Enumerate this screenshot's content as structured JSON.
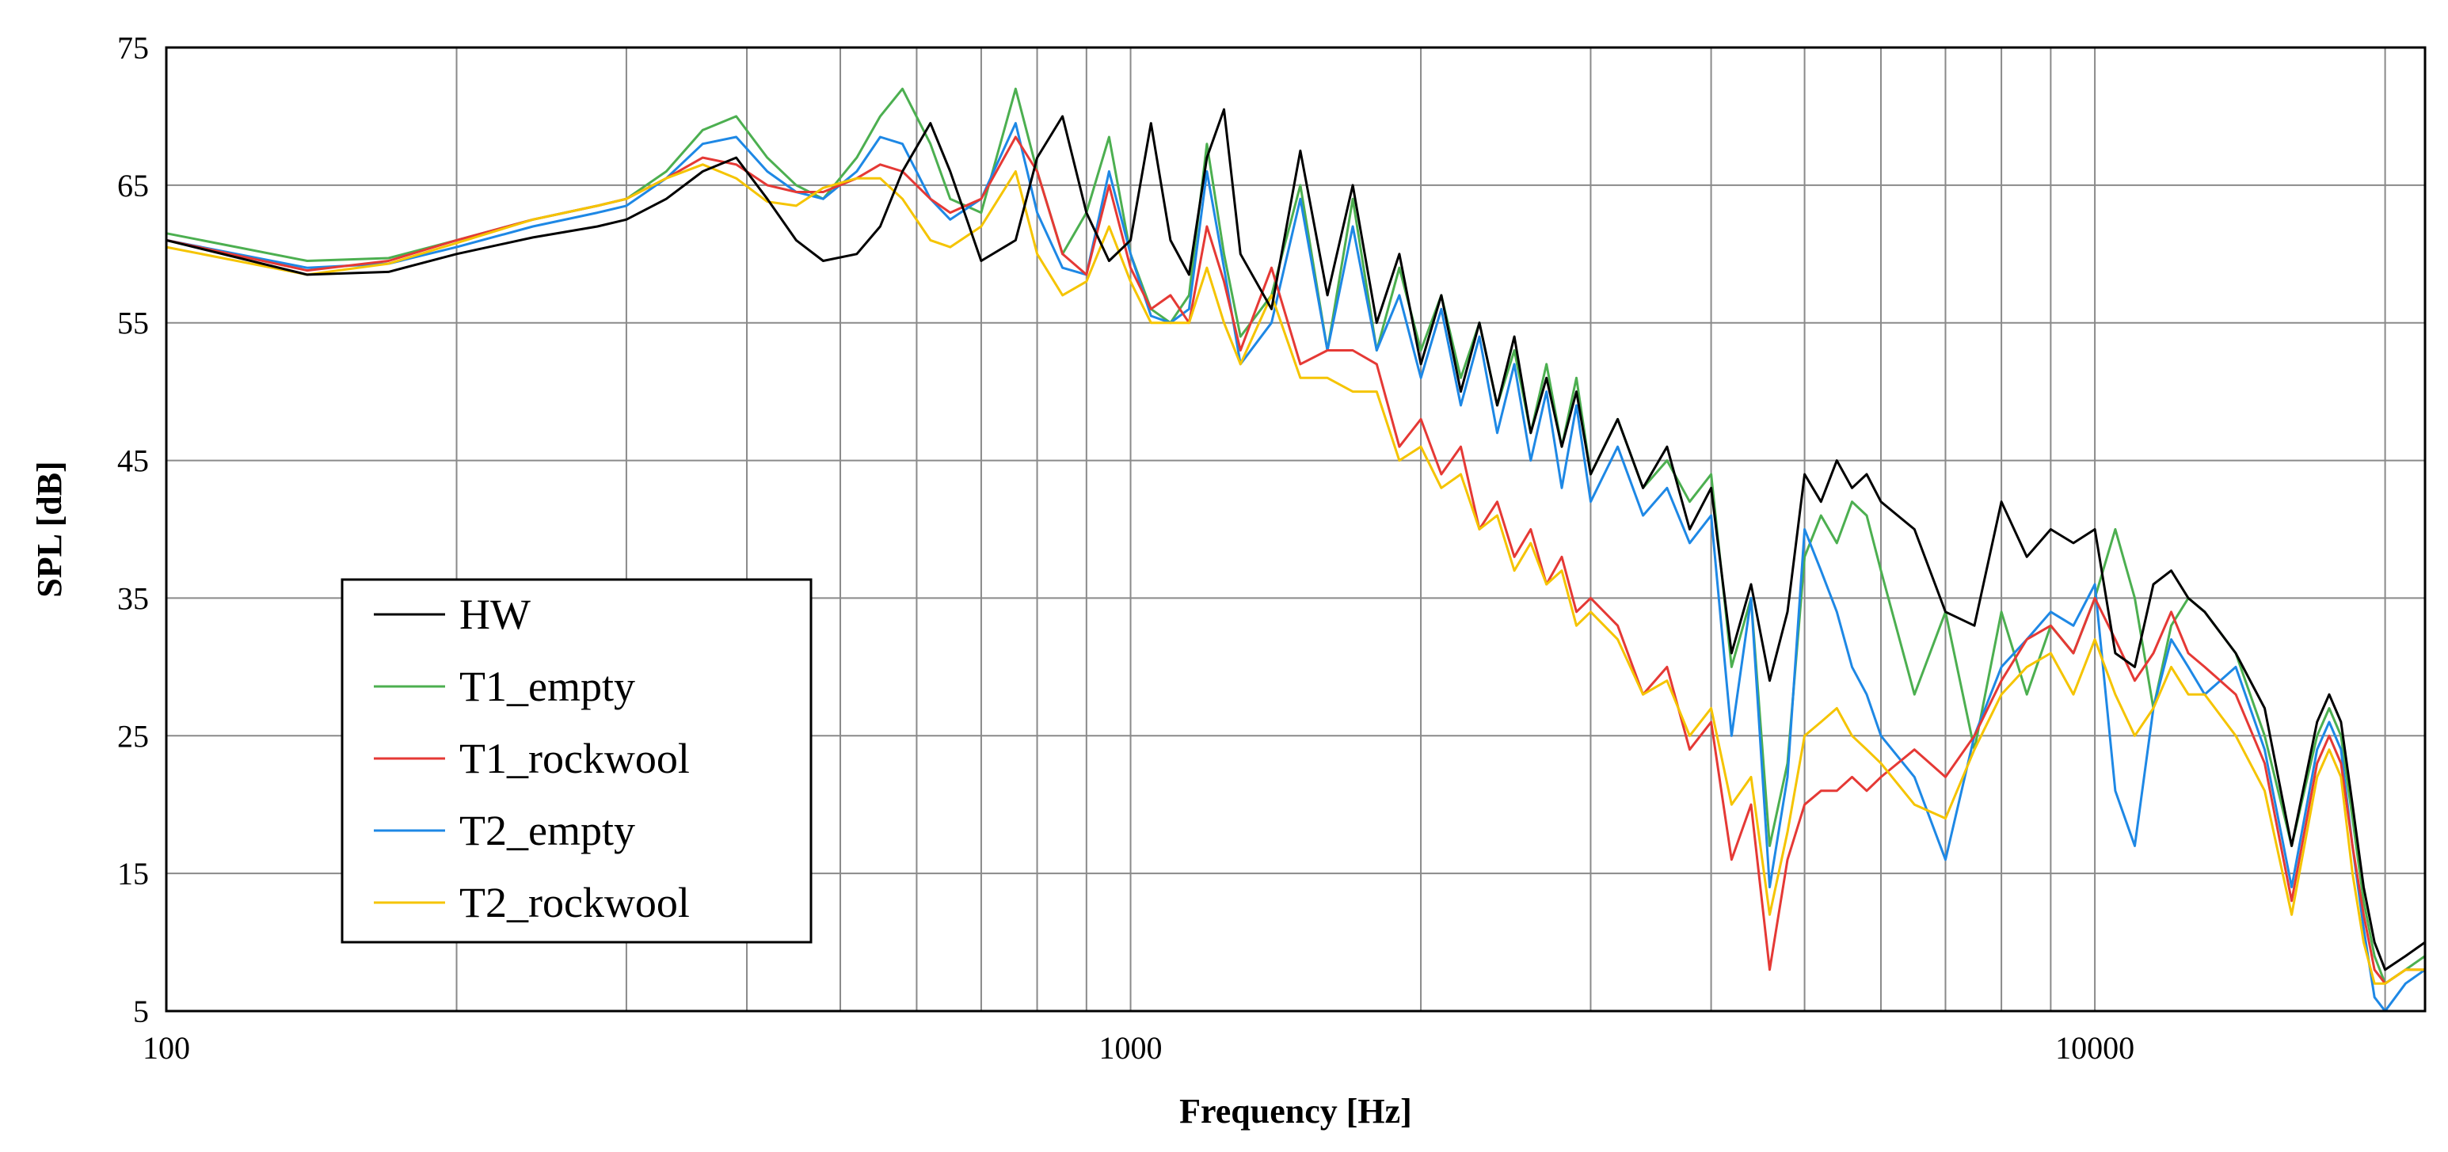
{
  "chart_data": {
    "type": "line",
    "title": "",
    "xlabel": "Frequency [Hz]",
    "ylabel": "SPL [dB]",
    "xscale": "log",
    "xlim": [
      100,
      22000
    ],
    "ylim": [
      5,
      75
    ],
    "x_tick_labels": [
      "100",
      "1000",
      "10000"
    ],
    "x_tick_values": [
      100,
      1000,
      10000
    ],
    "y_tick_values": [
      5,
      15,
      25,
      35,
      45,
      55,
      65,
      75
    ],
    "y_tick_labels": [
      "5",
      "15",
      "25",
      "35",
      "45",
      "55",
      "65",
      "75"
    ],
    "grid": true,
    "legend_position": "left-middle",
    "series": [
      {
        "name": "HW",
        "color": "#000000",
        "x": [
          100,
          140,
          170,
          200,
          240,
          280,
          300,
          330,
          360,
          390,
          420,
          450,
          480,
          520,
          550,
          580,
          620,
          650,
          700,
          760,
          800,
          850,
          900,
          950,
          1000,
          1050,
          1100,
          1150,
          1200,
          1250,
          1300,
          1400,
          1500,
          1600,
          1700,
          1800,
          1900,
          2000,
          2100,
          2200,
          2300,
          2400,
          2500,
          2600,
          2700,
          2800,
          2900,
          3000,
          3200,
          3400,
          3600,
          3800,
          4000,
          4200,
          4400,
          4600,
          4800,
          5000,
          5200,
          5400,
          5600,
          5800,
          6000,
          6500,
          7000,
          7500,
          8000,
          8500,
          9000,
          9500,
          10000,
          10500,
          11000,
          11500,
          12000,
          12500,
          13000,
          14000,
          15000,
          16000,
          17000,
          17500,
          18000,
          18500,
          19000,
          19500,
          20000,
          21000,
          22000
        ],
        "y": [
          61,
          58.5,
          58.7,
          60,
          61.2,
          62,
          62.5,
          64,
          66,
          67,
          64,
          61,
          59.5,
          60,
          62,
          66,
          69.5,
          66,
          59.5,
          61,
          67,
          70,
          63,
          59.5,
          61,
          69.5,
          61,
          58.5,
          67,
          70.5,
          60,
          56,
          67.5,
          57,
          65,
          55,
          60,
          52,
          57,
          50,
          55,
          49,
          54,
          47,
          51,
          46,
          50,
          44,
          48,
          43,
          46,
          40,
          43,
          31,
          36,
          29,
          34,
          44,
          42,
          45,
          43,
          44,
          42,
          40,
          34,
          33,
          42,
          38,
          40,
          39,
          40,
          31,
          30,
          36,
          37,
          35,
          34,
          31,
          27,
          17,
          26,
          28,
          26,
          20,
          14,
          10,
          8,
          9,
          10
        ]
      },
      {
        "name": "T1_empty",
        "color": "#4caf50",
        "x": [
          100,
          140,
          170,
          200,
          240,
          280,
          300,
          330,
          360,
          390,
          420,
          450,
          480,
          520,
          550,
          580,
          620,
          650,
          700,
          760,
          800,
          850,
          900,
          950,
          1000,
          1050,
          1100,
          1150,
          1200,
          1250,
          1300,
          1400,
          1500,
          1600,
          1700,
          1800,
          1900,
          2000,
          2100,
          2200,
          2300,
          2400,
          2500,
          2600,
          2700,
          2800,
          2900,
          3000,
          3200,
          3400,
          3600,
          3800,
          4000,
          4200,
          4400,
          4600,
          4800,
          5000,
          5200,
          5400,
          5600,
          5800,
          6000,
          6500,
          7000,
          7500,
          8000,
          8500,
          9000,
          9500,
          10000,
          10500,
          11000,
          11500,
          12000,
          12500,
          13000,
          14000,
          15000,
          16000,
          17000,
          17500,
          18000,
          18500,
          19000,
          19500,
          20000,
          21000,
          22000
        ],
        "y": [
          61.5,
          59.5,
          59.7,
          61,
          62.5,
          63.5,
          64,
          66,
          69,
          70,
          67,
          65,
          64,
          67,
          70,
          72,
          68,
          64,
          63,
          72,
          66,
          60,
          63,
          68.5,
          60,
          56,
          55,
          57,
          68,
          60,
          54,
          57,
          65,
          53,
          64,
          53,
          59,
          53,
          57,
          51,
          55,
          49,
          53,
          47,
          52,
          46,
          51,
          44,
          48,
          43,
          45,
          42,
          44,
          30,
          35,
          17,
          23,
          38,
          41,
          39,
          42,
          41,
          37,
          28,
          34,
          24,
          34,
          28,
          33,
          31,
          35,
          40,
          35,
          27,
          33,
          35,
          34,
          31,
          25,
          17,
          25,
          27,
          25,
          19,
          13,
          9,
          7,
          8,
          9
        ]
      },
      {
        "name": "T1_rockwool",
        "color": "#e53935",
        "x": [
          100,
          140,
          170,
          200,
          240,
          280,
          300,
          330,
          360,
          390,
          420,
          450,
          480,
          520,
          550,
          580,
          620,
          650,
          700,
          760,
          800,
          850,
          900,
          950,
          1000,
          1050,
          1100,
          1150,
          1200,
          1250,
          1300,
          1400,
          1500,
          1600,
          1700,
          1800,
          1900,
          2000,
          2100,
          2200,
          2300,
          2400,
          2500,
          2600,
          2700,
          2800,
          2900,
          3000,
          3200,
          3400,
          3600,
          3800,
          4000,
          4200,
          4400,
          4600,
          4800,
          5000,
          5200,
          5400,
          5600,
          5800,
          6000,
          6500,
          7000,
          7500,
          8000,
          8500,
          9000,
          9500,
          10000,
          10500,
          11000,
          11500,
          12000,
          12500,
          13000,
          14000,
          15000,
          16000,
          17000,
          17500,
          18000,
          18500,
          19000,
          19500,
          20000,
          21000,
          22000
        ],
        "y": [
          61,
          58.8,
          59.5,
          61,
          62.5,
          63.5,
          64,
          65.5,
          67,
          66.5,
          65,
          64.5,
          64.5,
          65.5,
          66.5,
          66,
          64,
          63,
          64,
          68.5,
          66,
          60,
          58.5,
          65,
          59,
          56,
          57,
          55,
          62,
          58,
          53,
          59,
          52,
          53,
          53,
          52,
          46,
          48,
          44,
          46,
          40,
          42,
          38,
          40,
          36,
          38,
          34,
          35,
          33,
          28,
          30,
          24,
          26,
          16,
          20,
          8,
          16,
          20,
          21,
          21,
          22,
          21,
          22,
          24,
          22,
          25,
          29,
          32,
          33,
          31,
          35,
          32,
          29,
          31,
          34,
          31,
          30,
          28,
          23,
          13,
          23,
          25,
          23,
          17,
          12,
          8,
          7,
          8,
          8
        ]
      },
      {
        "name": "T2_empty",
        "color": "#1e88e5",
        "x": [
          100,
          140,
          170,
          200,
          240,
          280,
          300,
          330,
          360,
          390,
          420,
          450,
          480,
          520,
          550,
          580,
          620,
          650,
          700,
          760,
          800,
          850,
          900,
          950,
          1000,
          1050,
          1100,
          1150,
          1200,
          1250,
          1300,
          1400,
          1500,
          1600,
          1700,
          1800,
          1900,
          2000,
          2100,
          2200,
          2300,
          2400,
          2500,
          2600,
          2700,
          2800,
          2900,
          3000,
          3200,
          3400,
          3600,
          3800,
          4000,
          4200,
          4400,
          4600,
          4800,
          5000,
          5200,
          5400,
          5600,
          5800,
          6000,
          6500,
          7000,
          7500,
          8000,
          8500,
          9000,
          9500,
          10000,
          10500,
          11000,
          11500,
          12000,
          12500,
          13000,
          14000,
          15000,
          16000,
          17000,
          17500,
          18000,
          18500,
          19000,
          19500,
          20000,
          21000,
          22000
        ],
        "y": [
          61,
          59,
          59.3,
          60.5,
          62,
          63,
          63.5,
          65.5,
          68,
          68.5,
          66,
          64.5,
          64,
          66,
          68.5,
          68,
          64,
          62.5,
          64,
          69.5,
          63,
          59,
          58.5,
          66,
          60,
          55.5,
          55,
          56,
          66,
          59,
          52,
          55,
          64,
          53,
          62,
          53,
          57,
          51,
          56,
          49,
          54,
          47,
          52,
          45,
          50,
          43,
          49,
          42,
          46,
          41,
          43,
          39,
          41,
          25,
          35,
          14,
          22,
          40,
          37,
          34,
          30,
          28,
          25,
          22,
          16,
          25,
          30,
          32,
          34,
          33,
          36,
          21,
          17,
          27,
          32,
          30,
          28,
          30,
          24,
          14,
          24,
          26,
          24,
          17,
          11,
          6,
          5,
          7,
          8
        ]
      },
      {
        "name": "T2_rockwool",
        "color": "#f5c400",
        "x": [
          100,
          140,
          170,
          200,
          240,
          280,
          300,
          330,
          360,
          390,
          420,
          450,
          480,
          520,
          550,
          580,
          620,
          650,
          700,
          760,
          800,
          850,
          900,
          950,
          1000,
          1050,
          1100,
          1150,
          1200,
          1250,
          1300,
          1400,
          1500,
          1600,
          1700,
          1800,
          1900,
          2000,
          2100,
          2200,
          2300,
          2400,
          2500,
          2600,
          2700,
          2800,
          2900,
          3000,
          3200,
          3400,
          3600,
          3800,
          4000,
          4200,
          4400,
          4600,
          4800,
          5000,
          5200,
          5400,
          5600,
          5800,
          6000,
          6500,
          7000,
          7500,
          8000,
          8500,
          9000,
          9500,
          10000,
          10500,
          11000,
          11500,
          12000,
          12500,
          13000,
          14000,
          15000,
          16000,
          17000,
          17500,
          18000,
          18500,
          19000,
          19500,
          20000,
          21000,
          22000
        ],
        "y": [
          60.5,
          58.5,
          59.3,
          60.8,
          62.5,
          63.5,
          64,
          65.5,
          66.5,
          65.5,
          63.8,
          63.5,
          64.8,
          65.5,
          65.5,
          64,
          61,
          60.5,
          62,
          66,
          60,
          57,
          58,
          62,
          58,
          55,
          55,
          55,
          59,
          55,
          52,
          57,
          51,
          51,
          50,
          50,
          45,
          46,
          43,
          44,
          40,
          41,
          37,
          39,
          36,
          37,
          33,
          34,
          32,
          28,
          29,
          25,
          27,
          20,
          22,
          12,
          18,
          25,
          26,
          27,
          25,
          24,
          23,
          20,
          19,
          24,
          28,
          30,
          31,
          28,
          32,
          28,
          25,
          27,
          30,
          28,
          28,
          25,
          21,
          12,
          22,
          24,
          22,
          15,
          10,
          7,
          7,
          8,
          8
        ]
      }
    ]
  }
}
